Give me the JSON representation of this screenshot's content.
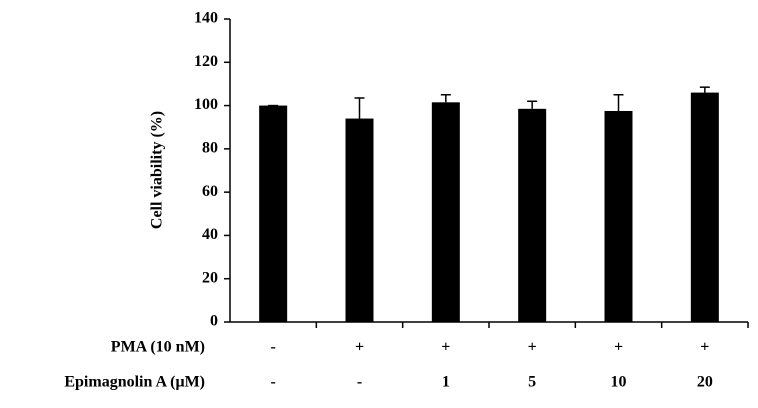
{
  "chart_data": {
    "type": "bar",
    "ylabel": "Cell viability (%)",
    "values": [
      100,
      94,
      101.5,
      98.5,
      97.5,
      106
    ],
    "errors": [
      0,
      9.5,
      3.5,
      3.5,
      7.5,
      2.5
    ],
    "color": "#000000",
    "ylim": [
      0,
      140
    ],
    "yticks": [
      0,
      20,
      40,
      60,
      80,
      100,
      120,
      140
    ],
    "condition_rows": [
      {
        "name": "PMA (10 nM)",
        "labels": [
          "-",
          "+",
          "+",
          "+",
          "+",
          "+"
        ]
      },
      {
        "name": "Epimagnolin A (μM)",
        "labels": [
          "-",
          "-",
          "1",
          "5",
          "10",
          "20"
        ]
      }
    ]
  }
}
